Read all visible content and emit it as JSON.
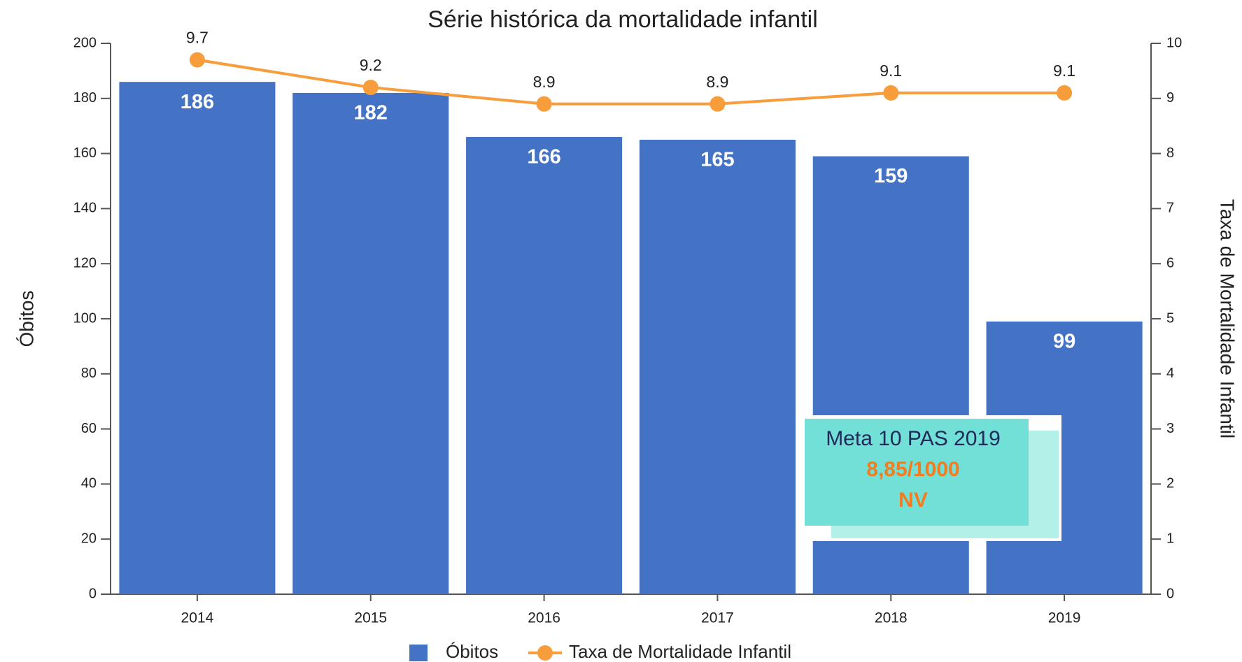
{
  "chart_data": {
    "type": "bar",
    "title": "Série histórica da mortalidade infantil",
    "categories": [
      "2014",
      "2015",
      "2016",
      "2017",
      "2018",
      "2019"
    ],
    "series": [
      {
        "name": "Óbitos",
        "type": "bar",
        "color": "#4472c4",
        "values": [
          186,
          182,
          166,
          165,
          159,
          99
        ]
      },
      {
        "name": "Taxa de Mortalidade Infantil",
        "type": "line",
        "axis": "y2",
        "color": "#f79d3c",
        "values": [
          9.7,
          9.2,
          8.9,
          8.9,
          9.1,
          9.1
        ]
      }
    ],
    "ylabel": "Óbitos",
    "y2label": "Taxa de Mortalidade Infantil",
    "ylim": [
      0,
      200
    ],
    "yticks": [
      0,
      20,
      40,
      60,
      80,
      100,
      120,
      140,
      160,
      180,
      200
    ],
    "y2lim": [
      0,
      10
    ],
    "y2ticks": [
      0,
      1,
      2,
      3,
      4,
      5,
      6,
      7,
      8,
      9,
      10
    ],
    "annotation": [
      "Meta 10 PAS 2019",
      "8,85/1000",
      "NV"
    ]
  }
}
